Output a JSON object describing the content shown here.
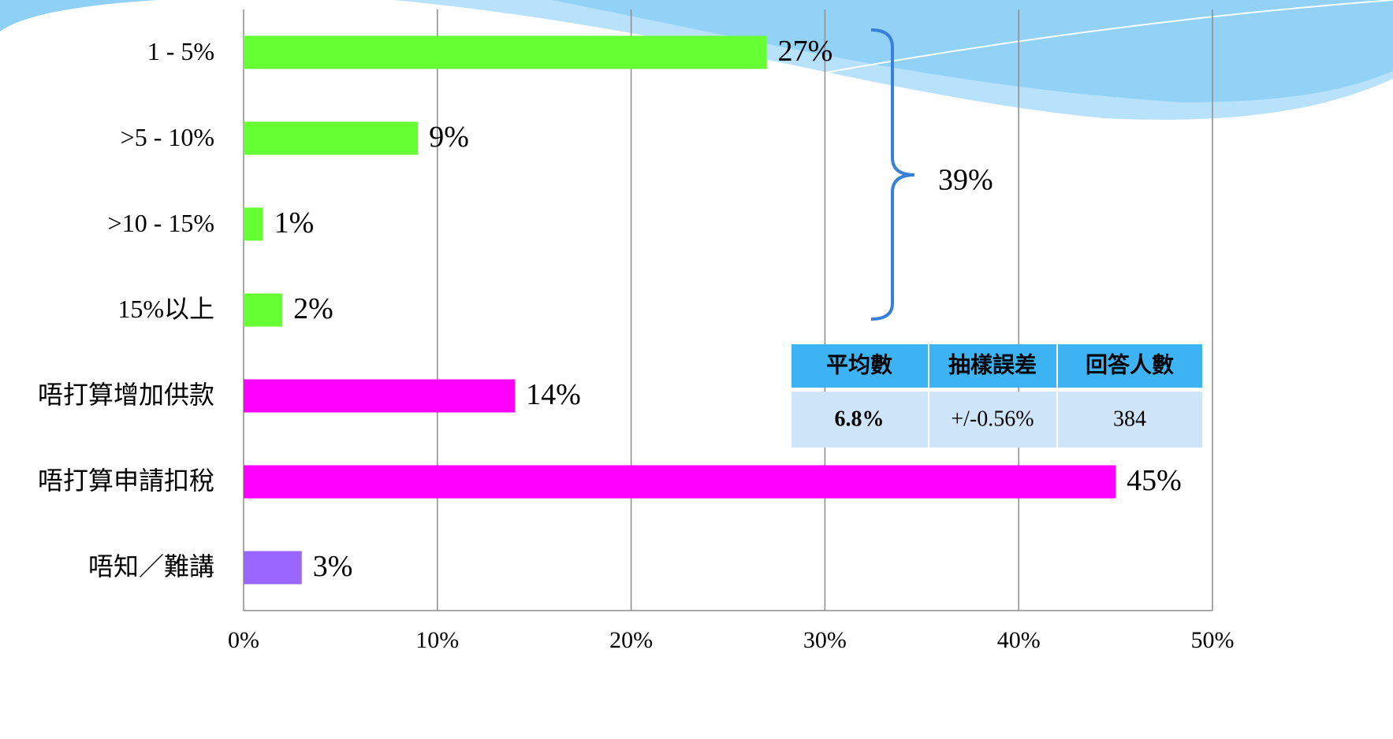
{
  "chart_data": {
    "type": "hbar",
    "categories": [
      "1 - 5%",
      ">5 - 10%",
      ">10 - 15%",
      "15%以上",
      "唔打算增加供款",
      "唔打算申請扣稅",
      "唔知／難講"
    ],
    "values": [
      27,
      9,
      1,
      2,
      14,
      45,
      3
    ],
    "value_labels": [
      "27%",
      "9%",
      "1%",
      "2%",
      "14%",
      "45%",
      "3%"
    ],
    "colors": [
      "#66ff33",
      "#66ff33",
      "#66ff33",
      "#66ff33",
      "#ff00ff",
      "#ff00ff",
      "#9966ff"
    ],
    "xlim": [
      0,
      50
    ],
    "xticks": [
      {
        "value": 0,
        "label": "0%"
      },
      {
        "value": 10,
        "label": "10%"
      },
      {
        "value": 20,
        "label": "20%"
      },
      {
        "value": 30,
        "label": "30%"
      },
      {
        "value": 40,
        "label": "40%"
      },
      {
        "value": 50,
        "label": "50%"
      }
    ],
    "grid": true,
    "annotation": "39%"
  },
  "table": {
    "header": [
      "平均數",
      "抽樣誤差",
      "回答人數"
    ],
    "row": [
      "6.8%",
      "+/-0.56%",
      "384"
    ]
  }
}
